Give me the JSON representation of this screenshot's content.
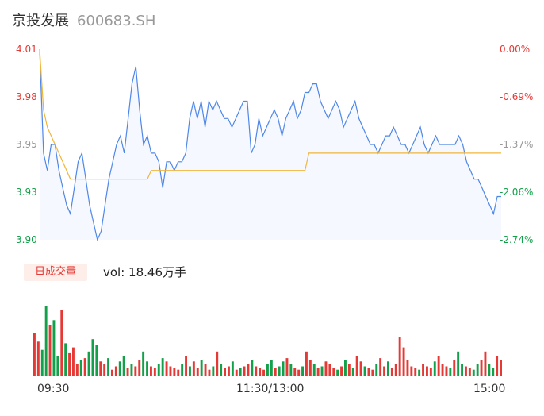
{
  "header": {
    "name": "京投发展",
    "code": "600683.SH"
  },
  "volume": {
    "badge": "日成交量",
    "text": "vol: 18.46万手"
  },
  "colors": {
    "price": "#4f87e8",
    "avg": "#f0b63a",
    "up": "#e53935",
    "down": "#12a04a",
    "neutral": "#999999"
  },
  "chart_data": {
    "type": "line",
    "ylim": [
      3.9,
      4.01
    ],
    "y_ticks_left": [
      "4.01",
      "3.98",
      "3.95",
      "3.93",
      "3.90"
    ],
    "y_ticks_right": [
      "0.00%",
      "-0.69%",
      "-1.37%",
      "-2.06%",
      "-2.74%"
    ],
    "x_ticks": [
      "09:30",
      "11:30/13:00",
      "15:00"
    ],
    "series": [
      {
        "values": [
          4.01,
          3.95,
          3.94,
          3.955,
          3.955,
          3.94,
          3.93,
          3.92,
          3.915,
          3.93,
          3.945,
          3.95,
          3.935,
          3.92,
          3.91,
          3.9,
          3.905,
          3.92,
          3.935,
          3.945,
          3.955,
          3.96,
          3.95,
          3.97,
          3.99,
          4.0,
          3.975,
          3.955,
          3.96,
          3.95,
          3.95,
          3.945,
          3.93,
          3.945,
          3.945,
          3.94,
          3.945,
          3.945,
          3.95,
          3.97,
          3.98,
          3.97,
          3.98,
          3.965,
          3.98,
          3.975,
          3.98,
          3.975,
          3.97,
          3.97,
          3.965,
          3.97,
          3.975,
          3.98,
          3.98,
          3.95,
          3.955,
          3.97,
          3.96,
          3.965,
          3.97,
          3.975,
          3.97,
          3.96,
          3.97,
          3.975,
          3.98,
          3.97,
          3.975,
          3.985,
          3.985,
          3.99,
          3.99,
          3.98,
          3.975,
          3.97,
          3.975,
          3.98,
          3.975,
          3.965,
          3.97,
          3.975,
          3.98,
          3.97,
          3.965,
          3.96,
          3.955,
          3.955,
          3.95,
          3.955,
          3.96,
          3.96,
          3.965,
          3.96,
          3.955,
          3.955,
          3.95,
          3.955,
          3.96,
          3.965,
          3.955,
          3.95,
          3.955,
          3.96,
          3.955,
          3.955,
          3.955,
          3.955,
          3.955,
          3.96,
          3.955,
          3.945,
          3.94,
          3.935,
          3.935,
          3.93,
          3.925,
          3.92,
          3.915,
          3.925,
          3.925
        ]
      },
      {
        "values": [
          4.01,
          3.975,
          3.965,
          3.96,
          3.955,
          3.95,
          3.945,
          3.94,
          3.935,
          3.935,
          3.935,
          3.935,
          3.935,
          3.935,
          3.935,
          3.935,
          3.935,
          3.935,
          3.935,
          3.935,
          3.935,
          3.935,
          3.935,
          3.935,
          3.935,
          3.935,
          3.935,
          3.935,
          3.935,
          3.94,
          3.94,
          3.94,
          3.94,
          3.94,
          3.94,
          3.94,
          3.94,
          3.94,
          3.94,
          3.94,
          3.94,
          3.94,
          3.94,
          3.94,
          3.94,
          3.94,
          3.94,
          3.94,
          3.94,
          3.94,
          3.94,
          3.94,
          3.94,
          3.94,
          3.94,
          3.94,
          3.94,
          3.94,
          3.94,
          3.94,
          3.94,
          3.94,
          3.94,
          3.94,
          3.94,
          3.94,
          3.94,
          3.94,
          3.94,
          3.94,
          3.95,
          3.95,
          3.95,
          3.95,
          3.95,
          3.95,
          3.95,
          3.95,
          3.95,
          3.95,
          3.95,
          3.95,
          3.95,
          3.95,
          3.95,
          3.95,
          3.95,
          3.95,
          3.95,
          3.95,
          3.95,
          3.95,
          3.95,
          3.95,
          3.95,
          3.95,
          3.95,
          3.95,
          3.95,
          3.95,
          3.95,
          3.95,
          3.95,
          3.95,
          3.95,
          3.95,
          3.95,
          3.95,
          3.95,
          3.95,
          3.95,
          3.95,
          3.95,
          3.95,
          3.95,
          3.95,
          3.95,
          3.95,
          3.95,
          3.95,
          3.95
        ]
      }
    ],
    "volume_bars": [
      0.52,
      0.42,
      0.32,
      0.85,
      0.62,
      0.68,
      0.25,
      0.8,
      0.4,
      0.28,
      0.35,
      0.15,
      0.2,
      0.22,
      0.3,
      0.45,
      0.38,
      0.18,
      0.15,
      0.22,
      0.08,
      0.12,
      0.18,
      0.25,
      0.1,
      0.15,
      0.12,
      0.2,
      0.3,
      0.18,
      0.12,
      0.1,
      0.15,
      0.22,
      0.18,
      0.12,
      0.1,
      0.08,
      0.15,
      0.25,
      0.12,
      0.18,
      0.1,
      0.2,
      0.15,
      0.08,
      0.12,
      0.3,
      0.15,
      0.1,
      0.12,
      0.18,
      0.08,
      0.1,
      0.12,
      0.15,
      0.2,
      0.12,
      0.1,
      0.08,
      0.15,
      0.2,
      0.1,
      0.12,
      0.18,
      0.22,
      0.15,
      0.1,
      0.08,
      0.12,
      0.3,
      0.2,
      0.15,
      0.1,
      0.12,
      0.18,
      0.15,
      0.1,
      0.08,
      0.12,
      0.2,
      0.15,
      0.1,
      0.25,
      0.18,
      0.12,
      0.1,
      0.08,
      0.15,
      0.22,
      0.12,
      0.18,
      0.1,
      0.15,
      0.48,
      0.35,
      0.2,
      0.12,
      0.1,
      0.08,
      0.15,
      0.12,
      0.1,
      0.18,
      0.25,
      0.15,
      0.12,
      0.1,
      0.2,
      0.3,
      0.15,
      0.12,
      0.1,
      0.08,
      0.15,
      0.2,
      0.3,
      0.15,
      0.1,
      0.25,
      0.2
    ],
    "volume_colors": [
      "r",
      "r",
      "g",
      "g",
      "r",
      "g",
      "g",
      "r",
      "g",
      "r",
      "r",
      "r",
      "g",
      "r",
      "g",
      "g",
      "g",
      "r",
      "r",
      "g",
      "r",
      "r",
      "g",
      "g",
      "r",
      "g",
      "r",
      "r",
      "g",
      "g",
      "r",
      "r",
      "g",
      "g",
      "r",
      "r",
      "r",
      "r",
      "g",
      "r",
      "g",
      "r",
      "r",
      "g",
      "r",
      "r",
      "g",
      "r",
      "g",
      "r",
      "r",
      "g",
      "r",
      "g",
      "r",
      "r",
      "g",
      "r",
      "r",
      "r",
      "g",
      "g",
      "r",
      "g",
      "g",
      "r",
      "g",
      "r",
      "r",
      "g",
      "r",
      "r",
      "g",
      "r",
      "g",
      "r",
      "r",
      "r",
      "g",
      "r",
      "g",
      "r",
      "g",
      "r",
      "r",
      "g",
      "r",
      "r",
      "g",
      "r",
      "r",
      "g",
      "r",
      "r",
      "r",
      "r",
      "r",
      "r",
      "r",
      "g",
      "r",
      "r",
      "r",
      "g",
      "r",
      "r",
      "r",
      "g",
      "r",
      "g",
      "g",
      "r",
      "r",
      "g",
      "g",
      "r",
      "r",
      "g",
      "g",
      "r",
      "r"
    ]
  }
}
